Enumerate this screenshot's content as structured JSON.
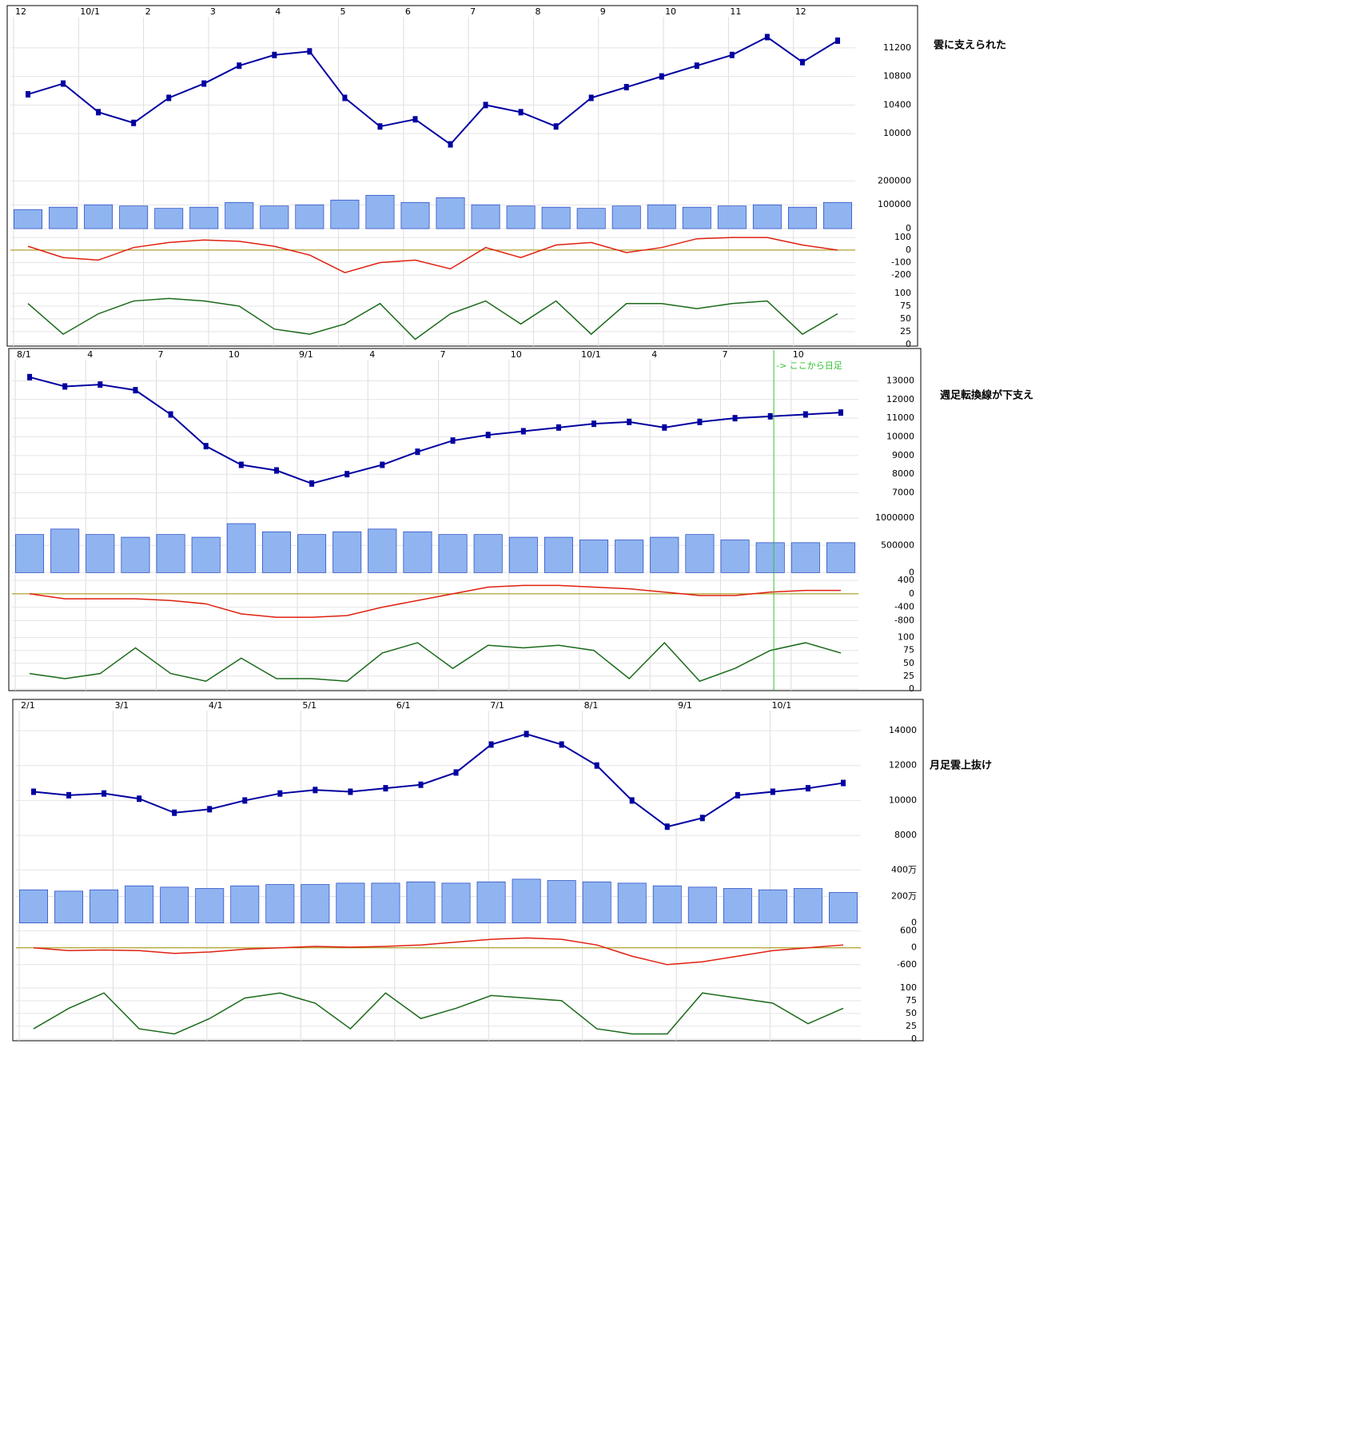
{
  "chart_data": [
    {
      "type": "candlestick",
      "annotation": "雲に支えられた",
      "date_labels": [
        "12",
        "10/1",
        "2",
        "3",
        "4",
        "5",
        "6",
        "7",
        "8",
        "9",
        "10",
        "11",
        "12"
      ],
      "price": {
        "color": "#0000a0",
        "ylim": [
          9600,
          11600
        ],
        "yticks": [
          10000,
          10400,
          10800,
          11200
        ],
        "values": [
          10550,
          10700,
          10300,
          10150,
          10500,
          10700,
          10950,
          11100,
          11150,
          10500,
          10100,
          10200,
          9850,
          10400,
          10300,
          10100,
          10500,
          10650,
          10800,
          10950,
          11100,
          11350,
          11000,
          11300
        ]
      },
      "volume": {
        "color": "#8fb4f0",
        "ylim": [
          0,
          250000
        ],
        "yticks": [
          0,
          100000,
          200000
        ],
        "values": [
          80000,
          90000,
          100000,
          95000,
          85000,
          90000,
          110000,
          95000,
          100000,
          120000,
          140000,
          110000,
          130000,
          100000,
          95000,
          90000,
          85000,
          95000,
          100000,
          90000,
          95000,
          100000,
          90000,
          110000
        ]
      },
      "macd": {
        "color": "#e02010",
        "ylim": [
          -250,
          130
        ],
        "yticks": [
          100,
          0,
          -100,
          -200
        ],
        "values": [
          30,
          -60,
          -80,
          20,
          60,
          80,
          70,
          30,
          -40,
          -180,
          -100,
          -80,
          -150,
          20,
          -60,
          40,
          60,
          -20,
          20,
          90,
          100,
          100,
          40,
          0
        ]
      },
      "stoch": {
        "color": "#1a6a1a",
        "ylim": [
          0,
          110
        ],
        "yticks": [
          0,
          25,
          50,
          75,
          100
        ],
        "values": [
          80,
          20,
          60,
          85,
          90,
          85,
          75,
          30,
          20,
          40,
          80,
          10,
          60,
          85,
          40,
          85,
          20,
          80,
          80,
          70,
          80,
          85,
          20,
          60
        ]
      }
    },
    {
      "type": "candlestick",
      "annotation": "週足転換線が下支え",
      "marker_label": "-> ここから日足",
      "date_labels": [
        "8/1",
        "4",
        "7",
        "10",
        "9/1",
        "4",
        "7",
        "10",
        "10/1",
        "4",
        "7",
        "10"
      ],
      "price": {
        "color": "#0000a0",
        "ylim": [
          6300,
          14000
        ],
        "yticks": [
          7000,
          8000,
          9000,
          10000,
          11000,
          12000,
          13000
        ],
        "values": [
          13200,
          12700,
          12800,
          12500,
          11200,
          9500,
          8500,
          8200,
          7500,
          8000,
          8500,
          9200,
          9800,
          10100,
          10300,
          10500,
          10700,
          10800,
          10500,
          10800,
          11000,
          11100,
          11200,
          11300
        ]
      },
      "volume": {
        "color": "#8fb4f0",
        "ylim": [
          0,
          1100000
        ],
        "yticks": [
          0,
          500000,
          1000000
        ],
        "values": [
          700000,
          800000,
          700000,
          650000,
          700000,
          650000,
          900000,
          750000,
          700000,
          750000,
          800000,
          750000,
          700000,
          700000,
          650000,
          650000,
          600000,
          600000,
          650000,
          700000,
          600000,
          550000,
          550000,
          550000
        ]
      },
      "macd": {
        "color": "#e02010",
        "ylim": [
          -950,
          480
        ],
        "yticks": [
          400,
          0,
          -400,
          -800
        ],
        "values": [
          0,
          -150,
          -150,
          -150,
          -200,
          -300,
          -600,
          -700,
          -700,
          -650,
          -400,
          -200,
          0,
          200,
          250,
          250,
          200,
          150,
          50,
          -50,
          -50,
          50,
          100,
          100
        ]
      },
      "stoch": {
        "color": "#1a6a1a",
        "ylim": [
          0,
          110
        ],
        "yticks": [
          0,
          25,
          50,
          75,
          100
        ],
        "values": [
          30,
          20,
          30,
          80,
          30,
          15,
          60,
          20,
          20,
          15,
          70,
          90,
          40,
          85,
          80,
          85,
          75,
          20,
          90,
          15,
          40,
          75,
          90,
          70
        ]
      }
    },
    {
      "type": "candlestick",
      "annotation": "月足雲上抜け",
      "date_labels": [
        "2/1",
        "3/1",
        "4/1",
        "5/1",
        "6/1",
        "7/1",
        "8/1",
        "9/1",
        "10/1"
      ],
      "price": {
        "color": "#0000a0",
        "ylim": [
          6800,
          15000
        ],
        "yticks": [
          8000,
          10000,
          12000,
          14000
        ],
        "values": [
          10500,
          10300,
          10400,
          10100,
          9300,
          9500,
          10000,
          10400,
          10600,
          10500,
          10700,
          10900,
          11600,
          13200,
          13800,
          13200,
          12000,
          10000,
          8500,
          9000,
          10300,
          10500,
          10700,
          11000
        ]
      },
      "volume": {
        "color": "#8fb4f0",
        "ylim": [
          0,
          4500000
        ],
        "yticks": [
          0,
          {
            "value": 2000000,
            "label": "200万"
          },
          {
            "value": 4000000,
            "label": "400万"
          }
        ],
        "values": [
          2500000,
          2400000,
          2500000,
          2800000,
          2700000,
          2600000,
          2800000,
          2900000,
          2900000,
          3000000,
          3000000,
          3100000,
          3000000,
          3100000,
          3300000,
          3200000,
          3100000,
          3000000,
          2800000,
          2700000,
          2600000,
          2500000,
          2600000,
          2300000
        ]
      },
      "macd": {
        "color": "#e02010",
        "ylim": [
          -1000,
          700
        ],
        "yticks": [
          600,
          0,
          -600
        ],
        "values": [
          0,
          -100,
          -80,
          -100,
          -200,
          -150,
          -50,
          0,
          50,
          20,
          50,
          100,
          200,
          300,
          350,
          300,
          100,
          -300,
          -600,
          -500,
          -300,
          -100,
          0,
          100
        ]
      },
      "stoch": {
        "color": "#1a6a1a",
        "ylim": [
          0,
          110
        ],
        "yticks": [
          0,
          25,
          50,
          75,
          100
        ],
        "values": [
          20,
          60,
          90,
          20,
          10,
          40,
          80,
          90,
          70,
          20,
          90,
          40,
          60,
          85,
          80,
          75,
          20,
          10,
          10,
          90,
          80,
          70,
          30,
          60
        ]
      }
    }
  ]
}
